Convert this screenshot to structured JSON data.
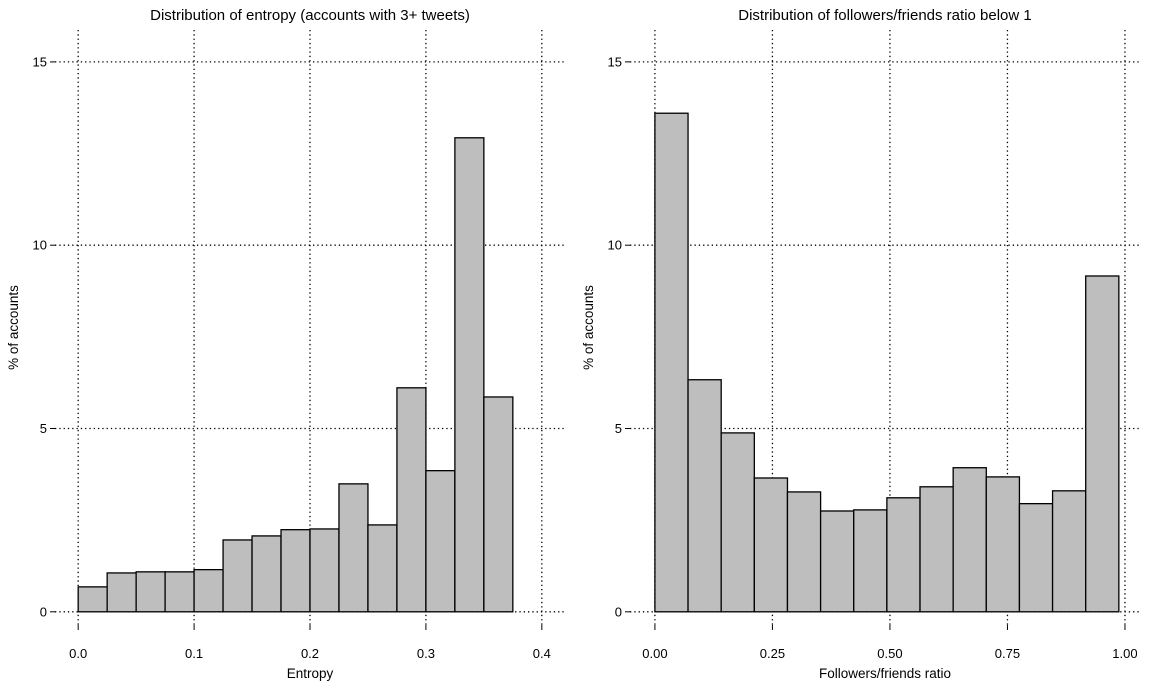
{
  "chart_data": [
    {
      "type": "histogram",
      "title": "Distribution of entropy (accounts with 3+ tweets)",
      "xlabel": "Entropy",
      "ylabel": "% of accounts",
      "bins": [
        0,
        0.025,
        0.05,
        0.075,
        0.1,
        0.125,
        0.15,
        0.175,
        0.2,
        0.225,
        0.25,
        0.275,
        0.3,
        0.325,
        0.35,
        0.375,
        0.4
      ],
      "values": [
        0.68,
        1.06,
        1.09,
        1.09,
        1.15,
        1.96,
        2.07,
        2.24,
        2.26,
        3.49,
        2.37,
        6.11,
        3.85,
        12.93,
        5.86,
        0
      ],
      "color": "#bebebe",
      "grid": true,
      "xlim": [
        -0.02,
        0.42
      ],
      "xticks": [
        {
          "value": 0,
          "label": "0.0"
        },
        0.1,
        0.2,
        0.3,
        0.4
      ],
      "ylim": [
        -0.36,
        15.87
      ],
      "yticks": [
        0,
        5,
        10,
        15
      ]
    },
    {
      "type": "histogram",
      "title": "Distribution of followers/friends ratio below 1",
      "xlabel": "Followers/friends ratio",
      "ylabel": "% of accounts",
      "bins": [
        0,
        0.0705,
        0.141,
        0.2115,
        0.282,
        0.3525,
        0.423,
        0.4935,
        0.564,
        0.6345,
        0.705,
        0.7755,
        0.846,
        0.9165,
        0.987
      ],
      "values": [
        13.6,
        6.33,
        4.88,
        3.65,
        3.27,
        2.75,
        2.78,
        3.11,
        3.41,
        3.93,
        3.68,
        2.95,
        3.3,
        9.16
      ],
      "color": "#bebebe",
      "grid": true,
      "xlim": [
        -0.053,
        1.032
      ],
      "xticks": [
        {
          "value": 0,
          "label": "0.00"
        },
        0.25,
        {
          "value": 0.5,
          "label": "0.50"
        },
        0.75,
        {
          "value": 1,
          "label": "1.00"
        }
      ],
      "ylim": [
        -0.36,
        15.87
      ],
      "yticks": [
        0,
        5,
        10,
        15
      ]
    }
  ]
}
